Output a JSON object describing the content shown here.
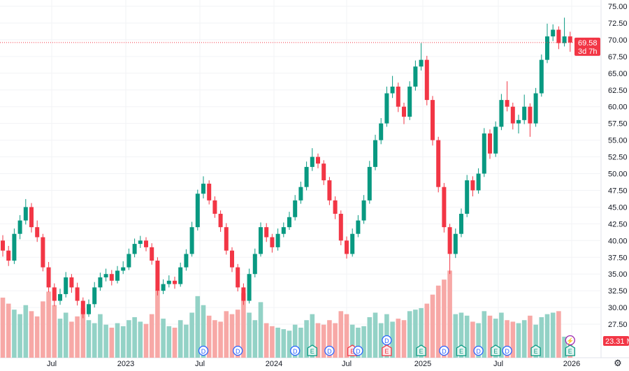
{
  "chart_data": {
    "type": "candlestick",
    "interval": "weekly",
    "y_axis": {
      "ticks": [
        "27.50",
        "30.00",
        "32.50",
        "35.00",
        "37.50",
        "40.00",
        "42.50",
        "45.00",
        "47.50",
        "50.00",
        "52.50",
        "55.00",
        "57.50",
        "60.00",
        "62.50",
        "65.00",
        "67.50",
        "70.00",
        "72.50",
        "75.00"
      ],
      "range": [
        26,
        75.5
      ],
      "position": "right"
    },
    "x_axis": {
      "ticks": [
        "Jul",
        "2023",
        "Jul",
        "2024",
        "Jul",
        "2025",
        "Jul",
        "2026"
      ]
    },
    "grid": true,
    "colors": {
      "up": "#089981",
      "down": "#f23645",
      "volume_up": "#93d2c6",
      "volume_down": "#f7a8a6",
      "marker_d": "#2962ff",
      "marker_e_up": "#089981",
      "marker_e_down": "#f23645",
      "marker_bolt": "#9c27b0"
    },
    "ohlc": [
      [
        40,
        40.8,
        37.6,
        38.5
      ],
      [
        38.5,
        39.2,
        36.2,
        37
      ],
      [
        37,
        41.8,
        36.5,
        41
      ],
      [
        41,
        43.8,
        40.2,
        43
      ],
      [
        43,
        46.2,
        42.4,
        45
      ],
      [
        45,
        45.6,
        41.2,
        42
      ],
      [
        42,
        43,
        39.8,
        40.5
      ],
      [
        40.5,
        41,
        35.4,
        36
      ],
      [
        36,
        36.8,
        32.3,
        33
      ],
      [
        33,
        33.6,
        30.2,
        31
      ],
      [
        31,
        32.8,
        30.4,
        32
      ],
      [
        32,
        35.3,
        31.5,
        34.5
      ],
      [
        34.5,
        35,
        32.2,
        33
      ],
      [
        33,
        33.7,
        30.3,
        31
      ],
      [
        31,
        31.5,
        28.4,
        29
      ],
      [
        29,
        31.2,
        28.6,
        30.5
      ],
      [
        30.5,
        33.8,
        30,
        33
      ],
      [
        33,
        35.2,
        32.5,
        34.5
      ],
      [
        34.5,
        35.8,
        33.9,
        35
      ],
      [
        35,
        35.6,
        33.3,
        34
      ],
      [
        34,
        36.2,
        33.6,
        35.5
      ],
      [
        35.5,
        36.9,
        35,
        36
      ],
      [
        36,
        38.8,
        35.6,
        38
      ],
      [
        38,
        40.3,
        37.5,
        39.5
      ],
      [
        39.5,
        40.7,
        38.9,
        40
      ],
      [
        40,
        40.5,
        38.4,
        39
      ],
      [
        39,
        39.6,
        36.4,
        37
      ],
      [
        37,
        37.5,
        31.8,
        32.5
      ],
      [
        32.5,
        34.2,
        32,
        33.5
      ],
      [
        33.5,
        34.8,
        33,
        34
      ],
      [
        34,
        34.6,
        32.8,
        33.5
      ],
      [
        33.5,
        36.7,
        33.1,
        36
      ],
      [
        36,
        38.7,
        35.5,
        38
      ],
      [
        38,
        42.8,
        37.6,
        42
      ],
      [
        42,
        47.6,
        41.5,
        47
      ],
      [
        47,
        49.6,
        46.3,
        48.5
      ],
      [
        48.5,
        49,
        45.4,
        46
      ],
      [
        46,
        46.6,
        43.4,
        44
      ],
      [
        44,
        44.5,
        41.3,
        42
      ],
      [
        42,
        42.6,
        37.9,
        38.5
      ],
      [
        38.5,
        39,
        35.3,
        36
      ],
      [
        36,
        36.5,
        32.4,
        33
      ],
      [
        33,
        33.6,
        30.4,
        31
      ],
      [
        31,
        35.8,
        30.6,
        35
      ],
      [
        35,
        38.8,
        34.5,
        38
      ],
      [
        38,
        42.7,
        37.6,
        42
      ],
      [
        42,
        42.6,
        39.8,
        40.5
      ],
      [
        40.5,
        41,
        38.2,
        39
      ],
      [
        39,
        41.8,
        38.5,
        41
      ],
      [
        41,
        42.7,
        40.5,
        42
      ],
      [
        42,
        44.3,
        41.6,
        43.5
      ],
      [
        43.5,
        46.8,
        43,
        46
      ],
      [
        46,
        48.8,
        45.5,
        48
      ],
      [
        48,
        51.8,
        47.5,
        51
      ],
      [
        51,
        53.8,
        50.4,
        52.5
      ],
      [
        52.5,
        53,
        50.8,
        51.5
      ],
      [
        51.5,
        52,
        48.3,
        49
      ],
      [
        49,
        49.5,
        45.3,
        46
      ],
      [
        46,
        46.6,
        43.2,
        44
      ],
      [
        44,
        44.5,
        39.3,
        40
      ],
      [
        40,
        40.6,
        37.3,
        38
      ],
      [
        38,
        41.8,
        37.6,
        41
      ],
      [
        41,
        43.8,
        40.5,
        43
      ],
      [
        43,
        46.8,
        42.5,
        46
      ],
      [
        46,
        51.9,
        45.5,
        51
      ],
      [
        51,
        55.8,
        50.5,
        55
      ],
      [
        55,
        58.3,
        54.4,
        57.5
      ],
      [
        57.5,
        63,
        57,
        62
      ],
      [
        62,
        64.6,
        61.3,
        63
      ],
      [
        63,
        63.6,
        59.2,
        60
      ],
      [
        60,
        60.6,
        57.4,
        58.5
      ],
      [
        58.5,
        63.8,
        58,
        63
      ],
      [
        63,
        66.9,
        62.4,
        66
      ],
      [
        66,
        69.5,
        65.4,
        67
      ],
      [
        67,
        67.6,
        60.2,
        61
      ],
      [
        61,
        61.6,
        54.2,
        55
      ],
      [
        55,
        55.5,
        47.2,
        48
      ],
      [
        48,
        48.6,
        41.2,
        42
      ],
      [
        42,
        42.5,
        35,
        38
      ],
      [
        38,
        41.8,
        37.4,
        41
      ],
      [
        41,
        44.8,
        40.5,
        44
      ],
      [
        44,
        49.8,
        43.5,
        49
      ],
      [
        49,
        49.6,
        46.6,
        47.5
      ],
      [
        47.5,
        50.8,
        47,
        50
      ],
      [
        50,
        56.8,
        49.5,
        56
      ],
      [
        56,
        56.6,
        52.2,
        53
      ],
      [
        53,
        57.8,
        52.5,
        57
      ],
      [
        57,
        61.9,
        56.5,
        61
      ],
      [
        61,
        63.8,
        59.3,
        60
      ],
      [
        60,
        60.6,
        56.6,
        57.5
      ],
      [
        57.5,
        58.8,
        56,
        58
      ],
      [
        58,
        61.8,
        57.4,
        60
      ],
      [
        60,
        60.5,
        55.5,
        57.5
      ],
      [
        57.5,
        62.8,
        57,
        62
      ],
      [
        62,
        67.8,
        61.5,
        67
      ],
      [
        67,
        72.4,
        66.5,
        70.5
      ],
      [
        70.5,
        72.3,
        69.8,
        71.5
      ],
      [
        71.5,
        72,
        68.6,
        69.5
      ],
      [
        69.5,
        73.3,
        69,
        70.5
      ],
      [
        70.5,
        71.2,
        68.2,
        69.58
      ]
    ],
    "volume_millions": [
      80,
      72,
      64,
      58,
      70,
      62,
      55,
      75,
      88,
      70,
      52,
      60,
      48,
      55,
      66,
      50,
      46,
      58,
      44,
      40,
      46,
      42,
      50,
      54,
      48,
      45,
      58,
      90,
      52,
      42,
      40,
      50,
      44,
      60,
      82,
      70,
      56,
      50,
      48,
      62,
      58,
      64,
      86,
      60,
      50,
      74,
      46,
      42,
      40,
      38,
      36,
      44,
      40,
      50,
      58,
      46,
      44,
      50,
      46,
      62,
      58,
      44,
      40,
      42,
      54,
      60,
      46,
      58,
      48,
      52,
      50,
      62,
      64,
      66,
      72,
      84,
      96,
      104,
      116,
      58,
      60,
      56,
      48,
      46,
      62,
      56,
      52,
      60,
      50,
      48,
      46,
      50,
      56,
      44,
      54,
      58,
      60,
      62,
      28,
      23.31
    ],
    "last_price": {
      "value": "69.58",
      "countdown": "3d 7h"
    },
    "last_volume": "23.31 M",
    "event_markers": [
      {
        "candle": 35,
        "label": "D",
        "kind": "dividend"
      },
      {
        "candle": 41,
        "label": "D",
        "kind": "dividend"
      },
      {
        "candle": 51,
        "label": "D",
        "kind": "dividend"
      },
      {
        "candle": 54,
        "label": "E",
        "kind": "earnings-up"
      },
      {
        "candle": 57,
        "label": "D",
        "kind": "dividend"
      },
      {
        "candle": 61,
        "label": "E",
        "kind": "earnings-down"
      },
      {
        "candle": 62,
        "label": "D",
        "kind": "dividend"
      },
      {
        "candle": 67,
        "label": "D",
        "kind": "dividend",
        "row": 1
      },
      {
        "candle": 67,
        "label": "E",
        "kind": "earnings-down"
      },
      {
        "candle": 73,
        "label": "E",
        "kind": "earnings-up"
      },
      {
        "candle": 77,
        "label": "D",
        "kind": "dividend"
      },
      {
        "candle": 80,
        "label": "E",
        "kind": "earnings-up"
      },
      {
        "candle": 83,
        "label": "D",
        "kind": "dividend"
      },
      {
        "candle": 86,
        "label": "E",
        "kind": "earnings-up"
      },
      {
        "candle": 88,
        "label": "D",
        "kind": "dividend"
      },
      {
        "candle": 93,
        "label": "E",
        "kind": "earnings-up"
      },
      {
        "candle": 99,
        "label": "E",
        "kind": "earnings-up"
      },
      {
        "candle": 99,
        "label": "⚡",
        "kind": "bolt",
        "row": 1
      }
    ]
  },
  "settings_icon": "gear-icon"
}
